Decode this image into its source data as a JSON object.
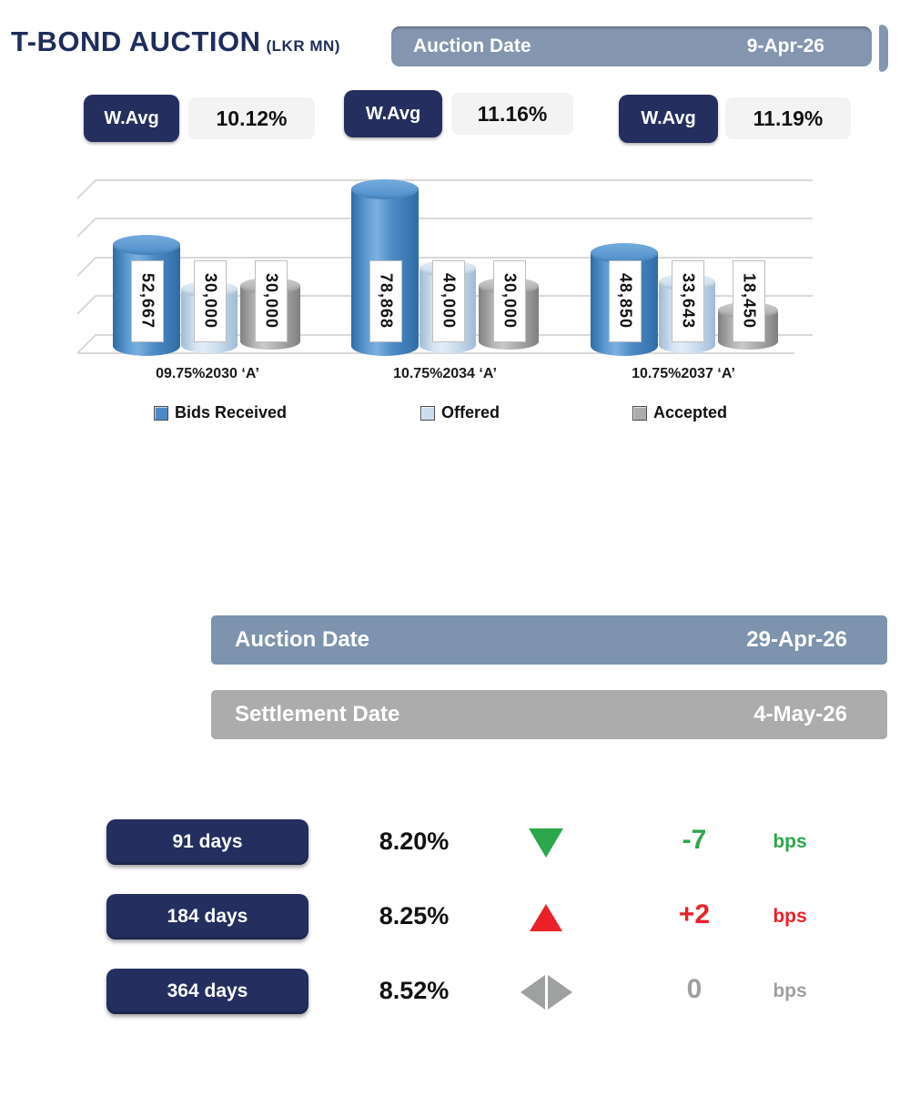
{
  "header": {
    "title": "T-BOND AUCTION",
    "title_suffix": "(LKR MN)",
    "auction_date_label": "Auction Date",
    "auction_date_value": "9-Apr-26"
  },
  "wavg": {
    "label": "W.Avg",
    "items": [
      {
        "value": "10.12%"
      },
      {
        "value": "11.16%"
      },
      {
        "value": "11.19%"
      }
    ]
  },
  "chart_data": {
    "type": "bar",
    "style": "3d-cylinder",
    "title": "T-BOND AUCTION (LKR MN)",
    "categories": [
      "09.75%2030 ‘A’",
      "10.75%2034 ‘A’",
      "10.75%2037 ‘A’"
    ],
    "series": [
      {
        "name": "Bids Received",
        "color": "#4c8ac6",
        "values": [
          52667,
          78868,
          48850
        ],
        "labels": [
          "52,667",
          "78,868",
          "48,850"
        ]
      },
      {
        "name": "Offered",
        "color": "#cbddee",
        "values": [
          30000,
          40000,
          33643
        ],
        "labels": [
          "30,000",
          "40,000",
          "33,643"
        ]
      },
      {
        "name": "Accepted",
        "color": "#ababab",
        "values": [
          30000,
          30000,
          18450
        ],
        "labels": [
          "30,000",
          "30,000",
          "18,450"
        ]
      }
    ],
    "ylim": [
      0,
      80000
    ],
    "gridlines": true,
    "legend_position": "bottom"
  },
  "lower_bars": [
    {
      "label": "Auction Date",
      "value": "29-Apr-26",
      "color": "#7d93ae"
    },
    {
      "label": "Settlement Date",
      "value": "4-May-26",
      "color": "#acacac"
    }
  ],
  "tbill": {
    "unit": "bps",
    "rows": [
      {
        "tenor": "91 days",
        "rate": "8.20%",
        "direction": "down",
        "change": "-7",
        "color": "#2ca74c"
      },
      {
        "tenor": "184 days",
        "rate": "8.25%",
        "direction": "up",
        "change": "+2",
        "color": "#ea2128"
      },
      {
        "tenor": "364 days",
        "rate": "8.52%",
        "direction": "neutral",
        "change": "0",
        "color": "#9fa0a0"
      }
    ]
  }
}
